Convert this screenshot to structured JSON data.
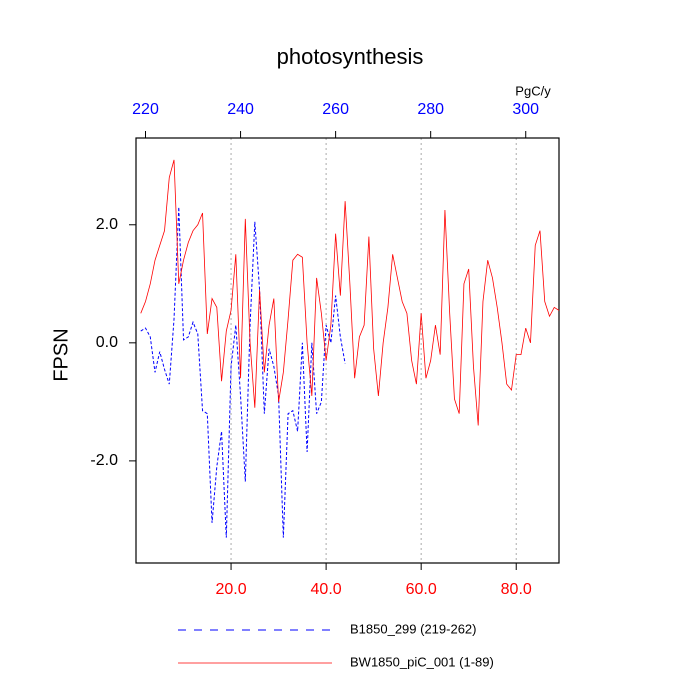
{
  "chart_data": {
    "type": "line",
    "title": "photosynthesis",
    "ylabel": "FPSN",
    "x2unit": "PgC/y",
    "xlim": [
      0,
      89
    ],
    "x2lim": [
      218,
      307
    ],
    "ylim": [
      -3.73,
      3.47
    ],
    "xticks": [
      {
        "value": 20,
        "label": "20.0"
      },
      {
        "value": 40,
        "label": "40.0"
      },
      {
        "value": 60,
        "label": "60.0"
      },
      {
        "value": 80,
        "label": "80.0"
      }
    ],
    "x2ticks": [
      220,
      240,
      260,
      280,
      300
    ],
    "yticks": [
      {
        "value": -2,
        "label": "-2.0"
      },
      {
        "value": 0,
        "label": "0.0"
      },
      {
        "value": 2,
        "label": "2.0"
      }
    ],
    "xtick_color": "#ff0000",
    "x2tick_color": "#0000ff",
    "grid": "x",
    "series": [
      {
        "name": "B1850_299 (219-262)",
        "color": "#0000ff",
        "line_style": "dashed",
        "axis": "x2",
        "x": [
          219,
          220,
          221,
          222,
          223,
          224,
          225,
          226,
          227,
          228,
          229,
          230,
          231,
          232,
          233,
          234,
          235,
          236,
          237,
          238,
          239,
          240,
          241,
          242,
          243,
          244,
          245,
          246,
          247,
          248,
          249,
          250,
          251,
          252,
          253,
          254,
          255,
          256,
          257,
          258,
          259,
          260,
          261,
          262
        ],
        "values": [
          0.2,
          0.25,
          0.1,
          -0.5,
          -0.15,
          -0.45,
          -0.7,
          0.4,
          2.3,
          0.05,
          0.1,
          0.35,
          0.15,
          -1.15,
          -1.2,
          -3.05,
          -2.1,
          -1.5,
          -3.3,
          -0.4,
          0.3,
          -0.9,
          -2.35,
          0.3,
          2.05,
          0.9,
          -1.2,
          -0.1,
          -0.4,
          -0.9,
          -3.3,
          -1.2,
          -1.15,
          -1.5,
          0.0,
          -1.85,
          0.0,
          -1.2,
          -1.0,
          0.3,
          0.0,
          0.8,
          0.1,
          -0.35
        ]
      },
      {
        "name": "BW1850_piC_001 (1-89)",
        "color": "#ff0000",
        "line_style": "solid",
        "axis": "x",
        "x": [
          1,
          2,
          3,
          4,
          5,
          6,
          7,
          8,
          9,
          10,
          11,
          12,
          13,
          14,
          15,
          16,
          17,
          18,
          19,
          20,
          21,
          22,
          23,
          24,
          25,
          26,
          27,
          28,
          29,
          30,
          31,
          32,
          33,
          34,
          35,
          36,
          37,
          38,
          39,
          40,
          41,
          42,
          43,
          44,
          45,
          46,
          47,
          48,
          49,
          50,
          51,
          52,
          53,
          54,
          55,
          56,
          57,
          58,
          59,
          60,
          61,
          62,
          63,
          64,
          65,
          66,
          67,
          68,
          69,
          70,
          71,
          72,
          73,
          74,
          75,
          76,
          77,
          78,
          79,
          80,
          81,
          82,
          83,
          84,
          85,
          86,
          87,
          88,
          89
        ],
        "values": [
          0.5,
          0.7,
          1.0,
          1.4,
          1.65,
          1.9,
          2.8,
          3.1,
          1.0,
          1.4,
          1.7,
          1.9,
          2.0,
          2.2,
          0.15,
          0.75,
          0.6,
          -0.65,
          0.2,
          0.55,
          1.5,
          -0.6,
          2.1,
          0.0,
          -1.1,
          0.9,
          -0.5,
          0.3,
          0.75,
          -1.0,
          -0.5,
          0.4,
          1.4,
          1.5,
          1.45,
          0.0,
          -0.9,
          1.1,
          0.5,
          -0.3,
          0.3,
          1.85,
          0.8,
          2.4,
          1.0,
          -0.6,
          0.1,
          0.3,
          1.8,
          -0.1,
          -0.9,
          0.0,
          0.6,
          1.5,
          1.1,
          0.7,
          0.5,
          -0.3,
          -0.7,
          0.5,
          -0.6,
          -0.3,
          0.3,
          -0.2,
          2.25,
          0.5,
          -0.95,
          -1.2,
          1.0,
          1.25,
          -0.4,
          -1.4,
          0.7,
          1.4,
          1.1,
          0.6,
          0.0,
          -0.7,
          -0.8,
          -0.2,
          -0.2,
          0.25,
          0.0,
          1.65,
          1.9,
          0.7,
          0.45,
          0.6,
          0.55
        ]
      }
    ]
  }
}
